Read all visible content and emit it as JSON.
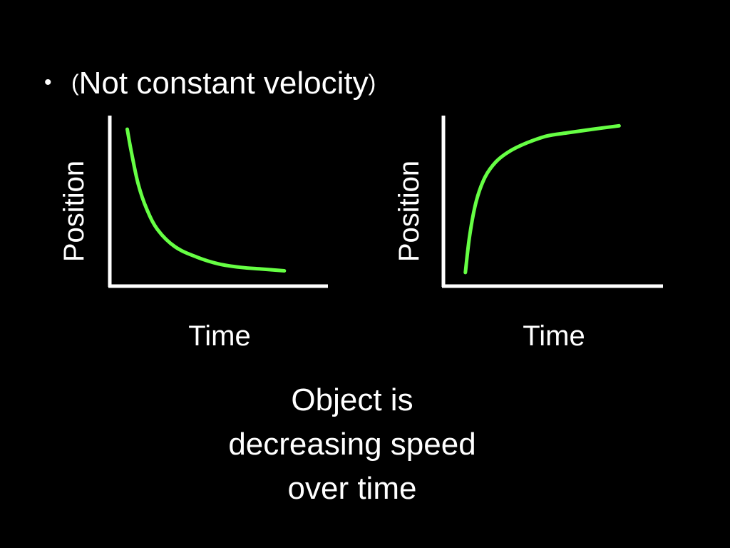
{
  "slide": {
    "bullet": "•",
    "bullet_open_paren": "(",
    "bullet_text": "Not constant velocity",
    "bullet_close_paren": ")",
    "caption_lines": [
      "Object is",
      "decreasing speed",
      "over time"
    ]
  },
  "colors": {
    "background": "#000000",
    "text": "#ffffff",
    "axis": "#ffffff",
    "curve": "#66ff44"
  },
  "chart_data": [
    {
      "type": "line",
      "title": "",
      "xlabel": "Time",
      "ylabel": "Position",
      "grid": false,
      "legend": "none",
      "xlim": [
        0,
        1
      ],
      "ylim": [
        0,
        1
      ],
      "series": [
        {
          "x": [
            0.08,
            0.1,
            0.13,
            0.17,
            0.22,
            0.3,
            0.4,
            0.5,
            0.6,
            0.7,
            0.8
          ],
          "y": [
            0.92,
            0.78,
            0.6,
            0.45,
            0.33,
            0.23,
            0.17,
            0.13,
            0.11,
            0.1,
            0.09
          ]
        }
      ]
    },
    {
      "type": "line",
      "title": "",
      "xlabel": "Time",
      "ylabel": "Position",
      "grid": false,
      "legend": "none",
      "xlim": [
        0,
        1
      ],
      "ylim": [
        0,
        1
      ],
      "series": [
        {
          "x": [
            0.1,
            0.12,
            0.15,
            0.19,
            0.24,
            0.3,
            0.38,
            0.47,
            0.57,
            0.68,
            0.8
          ],
          "y": [
            0.08,
            0.3,
            0.5,
            0.64,
            0.73,
            0.79,
            0.84,
            0.88,
            0.9,
            0.92,
            0.94
          ]
        }
      ]
    }
  ]
}
